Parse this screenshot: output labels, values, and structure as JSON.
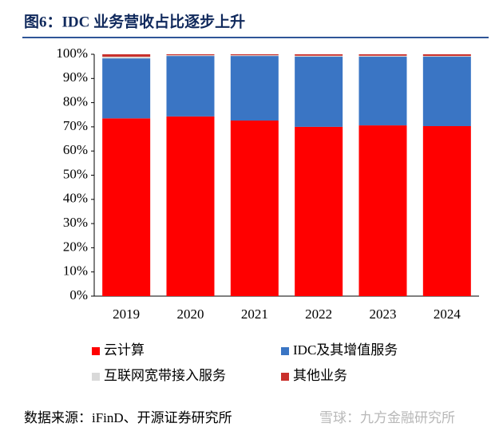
{
  "chart_data": {
    "type": "stacked_bar",
    "title": "图6：IDC 业务营收占比逐步上升",
    "source": "数据来源：iFinD、开源证券研究所",
    "watermark": "雪球：九方金融研究所",
    "categories": [
      "2019",
      "2020",
      "2021",
      "2022",
      "2023",
      "2024"
    ],
    "series": [
      {
        "name": "云计算",
        "color": "#ff0000",
        "values": [
          73.5,
          74.3,
          72.6,
          70.0,
          70.6,
          70.3
        ]
      },
      {
        "name": "IDC及其增值服务",
        "color": "#3a75c4",
        "values": [
          24.8,
          25.0,
          26.7,
          29.0,
          28.4,
          28.7
        ]
      },
      {
        "name": "互联网宽带接入服务",
        "color": "#d9d9d9",
        "values": [
          0.7,
          0.3,
          0.3,
          0.4,
          0.4,
          0.3
        ]
      },
      {
        "name": "其他业务",
        "color": "#c9302c",
        "values": [
          1.0,
          0.4,
          0.4,
          0.6,
          0.6,
          0.7
        ]
      }
    ],
    "ylim": [
      0,
      100
    ],
    "yticks": [
      {
        "value": 0,
        "label": "0%"
      },
      {
        "value": 10,
        "label": "10%"
      },
      {
        "value": 20,
        "label": "20%"
      },
      {
        "value": 30,
        "label": "30%"
      },
      {
        "value": 40,
        "label": "40%"
      },
      {
        "value": 50,
        "label": "50%"
      },
      {
        "value": 60,
        "label": "60%"
      },
      {
        "value": 70,
        "label": "70%"
      },
      {
        "value": 80,
        "label": "80%"
      },
      {
        "value": 90,
        "label": "90%"
      },
      {
        "value": 100,
        "label": "100%"
      }
    ],
    "legend": "bottom"
  }
}
